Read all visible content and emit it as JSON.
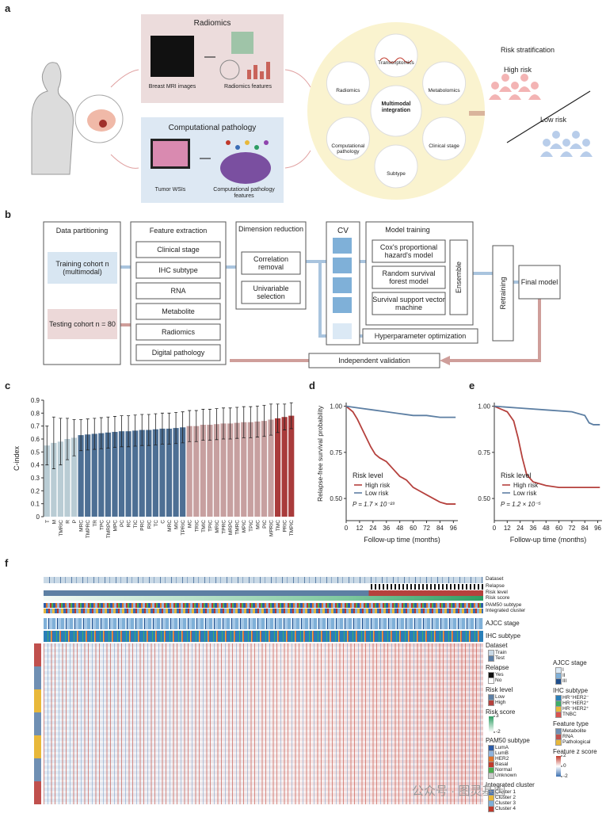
{
  "panel_labels": [
    "a",
    "b",
    "c",
    "d",
    "e",
    "f"
  ],
  "panel_a": {
    "radiomics_title": "Radiomics",
    "mri_label": "Breast MRI images",
    "radiomics_features": "Radiomics features",
    "pathology_title": "Computational pathology",
    "wsi_label": "Tumor WSIs",
    "pathology_features": "Computational pathology features",
    "center": "Multimodal integration",
    "modalities": [
      "Transcriptomics",
      "Metabolomics",
      "Clinical stage",
      "Subtype",
      "Computational pathology",
      "Radiomics"
    ],
    "risk_title": "Risk stratification",
    "high": "High risk",
    "low": "Low risk"
  },
  "panel_b": {
    "data_partitioning": "Data partitioning",
    "training": "Training cohort n (multimodal)",
    "testing": "Testing cohort n = 80",
    "feature_extraction": "Feature extraction",
    "features": [
      "Clinical stage",
      "IHC subtype",
      "RNA",
      "Metabolite",
      "Radiomics",
      "Digital pathology"
    ],
    "dimension_reduction": "Dimension reduction",
    "dr_steps": [
      "Correlation removal",
      "Univariable selection"
    ],
    "cv": "CV",
    "model_training": "Model training",
    "models": [
      "Cox's proportional hazard's model",
      "Random survival forest model",
      "Survival support vector machine"
    ],
    "ensemble": "Ensemble",
    "hyper": "Hyperparameter optimization",
    "retraining": "Retraining",
    "final": "Final model",
    "validation": "Independent validation"
  },
  "chart_data": [
    {
      "type": "bar",
      "ylabel": "C-index",
      "categories": [
        "T",
        "M",
        "TMRIC",
        "R",
        "P",
        "MRC",
        "TMPRC",
        "TR",
        "TPC",
        "TMRPC",
        "MPC",
        "PC",
        "RC",
        "TIC",
        "PRC",
        "RIC",
        "TC",
        "C",
        "MRC",
        "MIC",
        "TPRIC",
        "MC",
        "TRIC",
        "TMIC",
        "TPIC",
        "MRIC",
        "TPRC",
        "MRPC",
        "TMRC",
        "MPIC",
        "TPIC",
        "MIC",
        "PIC",
        "MPRIC",
        "TMC",
        "PRIC",
        "TMPIC"
      ],
      "values": [
        0.55,
        0.57,
        0.58,
        0.6,
        0.61,
        0.63,
        0.635,
        0.64,
        0.645,
        0.65,
        0.655,
        0.66,
        0.66,
        0.665,
        0.67,
        0.67,
        0.675,
        0.68,
        0.68,
        0.685,
        0.69,
        0.7,
        0.7,
        0.71,
        0.71,
        0.715,
        0.72,
        0.72,
        0.725,
        0.73,
        0.73,
        0.735,
        0.74,
        0.75,
        0.76,
        0.77,
        0.78
      ],
      "errors": [
        0.15,
        0.2,
        0.18,
        0.16,
        0.14,
        0.12,
        0.12,
        0.12,
        0.12,
        0.12,
        0.12,
        0.12,
        0.12,
        0.12,
        0.12,
        0.12,
        0.12,
        0.12,
        0.12,
        0.12,
        0.12,
        0.12,
        0.12,
        0.12,
        0.12,
        0.12,
        0.12,
        0.12,
        0.12,
        0.12,
        0.12,
        0.12,
        0.12,
        0.12,
        0.11,
        0.1,
        0.1
      ],
      "colors": [
        "#b9ccd4",
        "#b9ccd4",
        "#b9ccd4",
        "#b9ccd4",
        "#b9ccd4",
        "#4d6f94",
        "#4d6f94",
        "#4d6f94",
        "#4d6f94",
        "#4d6f94",
        "#4d6f94",
        "#4d6f94",
        "#4d6f94",
        "#4d6f94",
        "#4d6f94",
        "#4d6f94",
        "#4d6f94",
        "#4d6f94",
        "#4d6f94",
        "#4d6f94",
        "#4d6f94",
        "#c7a0a0",
        "#c7a0a0",
        "#c7a0a0",
        "#c7a0a0",
        "#c7a0a0",
        "#c7a0a0",
        "#c7a0a0",
        "#c7a0a0",
        "#c7a0a0",
        "#c7a0a0",
        "#c7a0a0",
        "#c7a0a0",
        "#c7a0a0",
        "#a93b3b",
        "#a93b3b",
        "#a93b3b"
      ],
      "ylim": [
        0,
        0.9
      ],
      "yticks": [
        0,
        0.1,
        0.2,
        0.3,
        0.4,
        0.5,
        0.6,
        0.7,
        0.8,
        0.9
      ]
    },
    {
      "type": "line",
      "ylabel": "Relapse-free survival probability",
      "xlabel": "Follow-up time (months)",
      "legend_title": "Risk level",
      "pvalue": "P = 1.7 × 10⁻²³",
      "series": [
        {
          "name": "High risk",
          "color": "#b5413d",
          "x": [
            0,
            6,
            10,
            14,
            18,
            22,
            26,
            30,
            36,
            42,
            48,
            54,
            60,
            66,
            72,
            78,
            84,
            90,
            98
          ],
          "values": [
            1,
            0.97,
            0.93,
            0.88,
            0.83,
            0.78,
            0.74,
            0.72,
            0.7,
            0.66,
            0.62,
            0.6,
            0.56,
            0.54,
            0.52,
            0.5,
            0.48,
            0.47,
            0.47
          ]
        },
        {
          "name": "Low risk",
          "color": "#5d7fa3",
          "x": [
            0,
            12,
            24,
            36,
            48,
            60,
            72,
            84,
            98
          ],
          "values": [
            1,
            0.99,
            0.98,
            0.97,
            0.96,
            0.95,
            0.95,
            0.94,
            0.94
          ]
        }
      ],
      "xlim": [
        0,
        100
      ],
      "xticks": [
        0,
        12,
        24,
        36,
        48,
        60,
        72,
        84,
        96
      ],
      "ylim": [
        0.38,
        1.02
      ],
      "yticks": [
        {
          "value": 0.5,
          "label": "0.50"
        },
        {
          "value": 0.75,
          "label": "0.75"
        },
        {
          "value": 1,
          "label": "1.00"
        }
      ]
    },
    {
      "type": "line",
      "xlabel": "Follow-up time (months)",
      "legend_title": "Risk level",
      "pvalue": "P = 1.2 × 10⁻⁵",
      "series": [
        {
          "name": "High risk",
          "color": "#b5413d",
          "x": [
            0,
            12,
            18,
            22,
            26,
            30,
            36,
            48,
            60,
            98
          ],
          "values": [
            1,
            0.97,
            0.92,
            0.83,
            0.72,
            0.63,
            0.59,
            0.57,
            0.56,
            0.56
          ]
        },
        {
          "name": "Low risk",
          "color": "#5d7fa3",
          "x": [
            0,
            24,
            48,
            72,
            84,
            88,
            92,
            98
          ],
          "values": [
            1,
            0.99,
            0.98,
            0.97,
            0.95,
            0.91,
            0.9,
            0.9
          ]
        }
      ],
      "xlim": [
        0,
        100
      ],
      "xticks": [
        0,
        12,
        24,
        36,
        48,
        60,
        72,
        84,
        96
      ],
      "ylim": [
        0.38,
        1.02
      ],
      "yticks": [
        {
          "value": 0.5,
          "label": "0.50"
        },
        {
          "value": 0.75,
          "label": "0.75"
        },
        {
          "value": 1,
          "label": "1.00"
        }
      ]
    }
  ],
  "panel_f": {
    "tracks": [
      "Dataset",
      "Relapse",
      "Risk level",
      "Risk score",
      "PAM50 subtype",
      "Integrated cluster",
      "AJCC stage",
      "IHC subtype"
    ],
    "legends": [
      {
        "title": "Dataset",
        "items": [
          "Train",
          "Test"
        ],
        "colors": [
          "#c9d9e6",
          "#5b7ea6"
        ]
      },
      {
        "title": "Relapse",
        "items": [
          "Yes",
          "No"
        ],
        "colors": [
          "#111111",
          "#ffffff"
        ]
      },
      {
        "title": "Risk level",
        "items": [
          "Low",
          "High"
        ],
        "colors": [
          "#5d7fa3",
          "#b5413d"
        ]
      },
      {
        "title": "Risk score",
        "ticks": [
          3,
          -2
        ],
        "lim": [
          -2,
          3
        ],
        "gradient": [
          "#ffffff",
          "#2e9d63"
        ]
      },
      {
        "title": "PAM50 subtype",
        "items": [
          "LumA",
          "LumB",
          "HER2",
          "Basal",
          "Normal",
          "Unknown"
        ],
        "colors": [
          "#2b5ba8",
          "#8fb3dd",
          "#e0732b",
          "#c0392b",
          "#4caf50",
          "#cccccc"
        ]
      },
      {
        "title": "Integrated cluster",
        "items": [
          "Cluster 1",
          "Cluster 2",
          "Cluster 3",
          "Cluster 4"
        ],
        "colors": [
          "#3a6db5",
          "#e8b83a",
          "#7fb0d8",
          "#c0392b"
        ]
      }
    ],
    "legends2": [
      {
        "title": "AJCC stage",
        "items": [
          "I",
          "II",
          "III"
        ],
        "colors": [
          "#dbe9f5",
          "#7fb0d8",
          "#1f4e8c"
        ]
      },
      {
        "title": "IHC subtype",
        "items": [
          "HR⁺HER2⁻",
          "HR⁺HER2⁺",
          "HR⁻HER2⁺",
          "TNBC"
        ],
        "colors": [
          "#2a7fb8",
          "#3fae6a",
          "#e8b83a",
          "#d9534f"
        ]
      },
      {
        "title": "Feature type",
        "items": [
          "Metabolite",
          "RNA",
          "Pathological"
        ],
        "colors": [
          "#6f8fb3",
          "#c0504d",
          "#e8b83a"
        ]
      },
      {
        "title": "Feature z score",
        "ticks": [
          2,
          0,
          -2
        ],
        "lim": [
          -2,
          2
        ],
        "gradient": [
          "#3b6fb0",
          "#ffffff",
          "#c0392b"
        ]
      }
    ]
  },
  "watermark": "公众号 · 图灵基因"
}
